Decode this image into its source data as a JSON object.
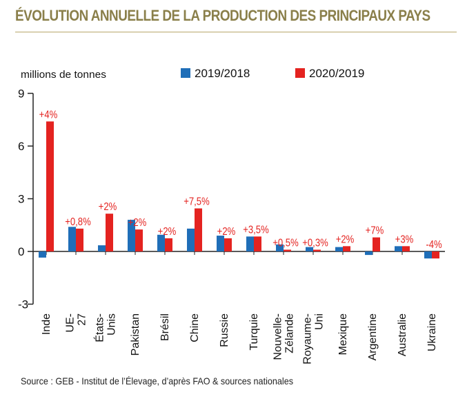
{
  "chart_data": {
    "type": "bar",
    "title": "ÉVOLUTION ANNUELLE DE LA PRODUCTION DES PRINCIPAUX PAYS",
    "ylabel": "millions de tonnes",
    "ylim": [
      -3,
      9
    ],
    "yticks": [
      9,
      6,
      3,
      0,
      -3
    ],
    "grid": false,
    "legend_position": "top",
    "categories": [
      "Inde",
      "UE-27",
      "États-Unis",
      "Pakistan",
      "Brésil",
      "Chine",
      "Russie",
      "Turquie",
      "Nouvelle-Zélande",
      "Royaume-Uni",
      "Mexique",
      "Argentine",
      "Australie",
      "Ukraine"
    ],
    "series": [
      {
        "name": "2019/2018",
        "color": "#1f6eb8",
        "values": [
          -0.35,
          1.4,
          0.35,
          1.8,
          0.95,
          1.3,
          0.9,
          0.85,
          0.4,
          0.25,
          0.25,
          -0.2,
          0.3,
          -0.4
        ]
      },
      {
        "name": "2020/2019",
        "color": "#e42320",
        "values": [
          7.4,
          1.3,
          2.15,
          1.25,
          0.75,
          2.45,
          0.75,
          0.85,
          0.1,
          0.1,
          0.3,
          0.8,
          0.3,
          -0.4
        ]
      }
    ],
    "annotations": [
      "+4%",
      "+0,8%",
      "+2%",
      "+2%",
      "+2%",
      "+7,5%",
      "+2%",
      "+3,5%",
      "+0,5%",
      "+0,3%",
      "+2%",
      "+7%",
      "+3%",
      "-4%"
    ],
    "annotation_color": "#e42320"
  },
  "source": "Source : GEB - Institut de l’Élevage, d’après FAO & sources nationales"
}
